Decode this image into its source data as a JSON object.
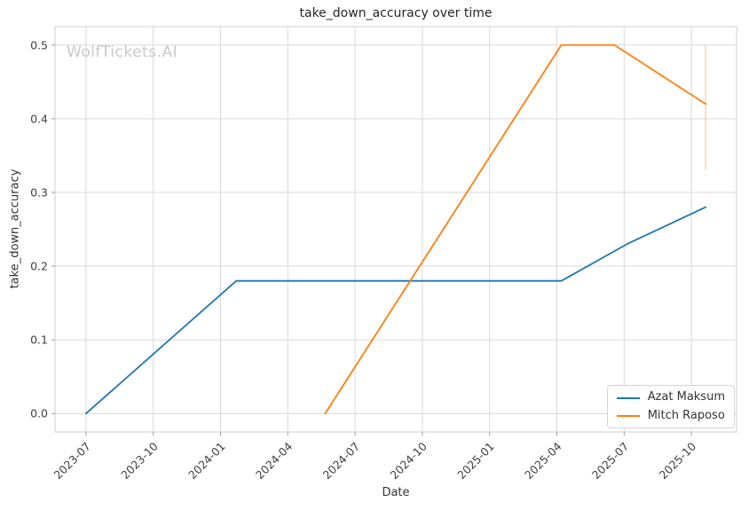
{
  "watermark": "WolfTickets.AI",
  "chart_data": {
    "type": "line",
    "title": "take_down_accuracy over time",
    "xlabel": "Date",
    "ylabel": "take_down_accuracy",
    "x_ticks": [
      "2023-07",
      "2023-10",
      "2024-01",
      "2024-04",
      "2024-07",
      "2024-10",
      "2025-01",
      "2025-04",
      "2025-07",
      "2025-10"
    ],
    "y_ticks": [
      "0.0",
      "0.1",
      "0.2",
      "0.3",
      "0.4",
      "0.5"
    ],
    "ylim": [
      0.0,
      0.5
    ],
    "grid": true,
    "grid_color": "#d9d9d9",
    "legend_position": "lower right",
    "series": [
      {
        "name": "Azat Maksum",
        "color": "#1f77b4",
        "points": [
          [
            "2023-07-01",
            0.0
          ],
          [
            "2024-01-22",
            0.18
          ],
          [
            "2025-04-07",
            0.18
          ],
          [
            "2025-07-05",
            0.23
          ],
          [
            "2025-10-20",
            0.28
          ]
        ]
      },
      {
        "name": "Mitch Raposo",
        "color": "#ff7f0e",
        "points": [
          [
            "2024-05-21",
            0.0
          ],
          [
            "2025-04-07",
            0.5
          ],
          [
            "2025-06-18",
            0.5
          ],
          [
            "2025-10-20",
            0.42
          ]
        ],
        "error_bar": {
          "x": "2025-10-20",
          "low": 0.33,
          "high": 0.5
        }
      }
    ]
  }
}
